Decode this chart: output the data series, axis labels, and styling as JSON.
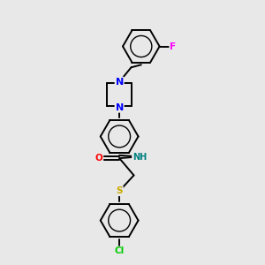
{
  "bg_color": "#e8e8e8",
  "bond_color": "#000000",
  "atom_colors": {
    "N": "#0000ff",
    "O": "#ff0000",
    "S": "#ccaa00",
    "F": "#ff00ff",
    "Cl": "#00cc00",
    "NH": "#008080",
    "C": "#000000"
  },
  "font_size": 7.5,
  "lw": 1.4,
  "figsize": [
    3.0,
    3.0
  ],
  "dpi": 100,
  "xlim": [
    0,
    10
  ],
  "ylim": [
    0,
    10
  ]
}
